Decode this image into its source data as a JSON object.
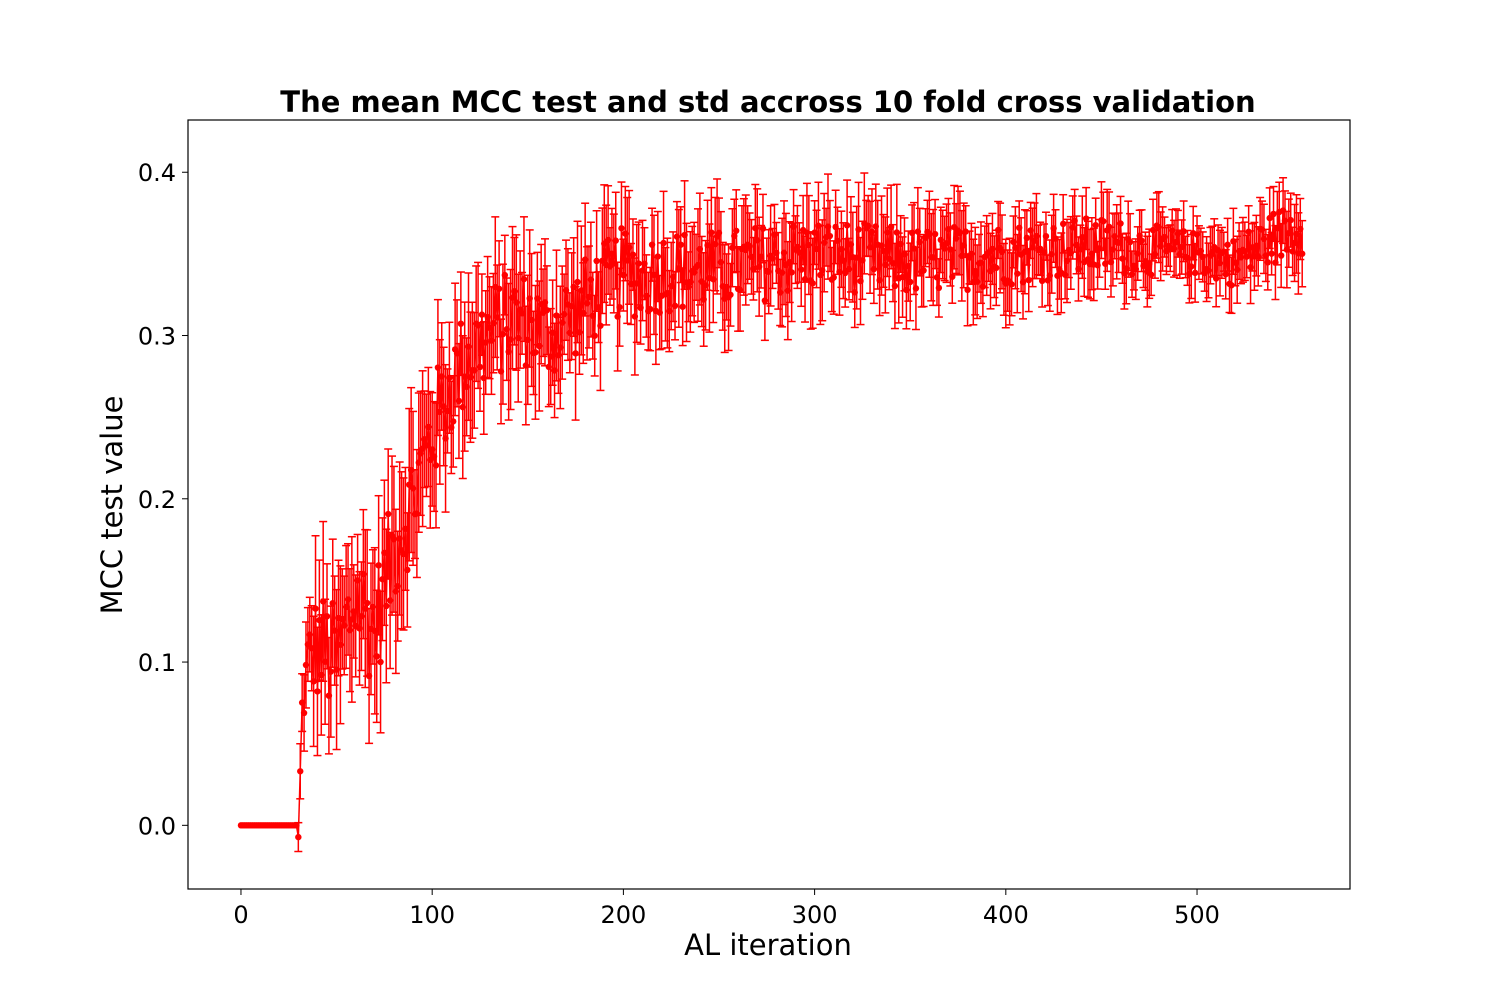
{
  "chart_data": {
    "type": "scatter",
    "title": "The mean MCC test and std accross 10 fold cross validation",
    "xlabel": "AL iteration",
    "ylabel": "MCC test value",
    "xlim": [
      -27.7,
      580
    ],
    "ylim": [
      -0.039,
      0.432
    ],
    "xticks": [
      0,
      100,
      200,
      300,
      400,
      500
    ],
    "yticks": [
      0.0,
      0.1,
      0.2,
      0.3,
      0.4
    ],
    "xtick_labels": [
      "0",
      "100",
      "200",
      "300",
      "400",
      "500"
    ],
    "ytick_labels": [
      "0.0",
      "0.1",
      "0.2",
      "0.3",
      "0.4"
    ],
    "grid": false,
    "legend": "none",
    "color": "#ff0000",
    "series": [
      {
        "style": "errorbar",
        "x_range": [
          0,
          555
        ],
        "mean_profile": [
          [
            0,
            0.0
          ],
          [
            29,
            0.0
          ],
          [
            30,
            -0.01
          ],
          [
            31,
            0.03
          ],
          [
            32,
            0.07
          ],
          [
            35,
            0.1
          ],
          [
            40,
            0.11
          ],
          [
            50,
            0.1
          ],
          [
            60,
            0.14
          ],
          [
            70,
            0.12
          ],
          [
            80,
            0.17
          ],
          [
            90,
            0.2
          ],
          [
            100,
            0.24
          ],
          [
            110,
            0.27
          ],
          [
            120,
            0.29
          ],
          [
            130,
            0.3
          ],
          [
            140,
            0.31
          ],
          [
            150,
            0.31
          ],
          [
            160,
            0.3
          ],
          [
            170,
            0.31
          ],
          [
            180,
            0.32
          ],
          [
            190,
            0.33
          ],
          [
            200,
            0.34
          ],
          [
            210,
            0.335
          ],
          [
            220,
            0.34
          ],
          [
            250,
            0.34
          ],
          [
            300,
            0.35
          ],
          [
            350,
            0.345
          ],
          [
            400,
            0.35
          ],
          [
            450,
            0.355
          ],
          [
            500,
            0.35
          ],
          [
            520,
            0.345
          ],
          [
            540,
            0.36
          ],
          [
            555,
            0.368
          ]
        ],
        "std_profile": [
          [
            0,
            0.0
          ],
          [
            29,
            0.0
          ],
          [
            30,
            0.01
          ],
          [
            40,
            0.04
          ],
          [
            80,
            0.04
          ],
          [
            120,
            0.035
          ],
          [
            200,
            0.03
          ],
          [
            300,
            0.025
          ],
          [
            450,
            0.02
          ],
          [
            500,
            0.015
          ],
          [
            555,
            0.02
          ]
        ]
      }
    ]
  }
}
